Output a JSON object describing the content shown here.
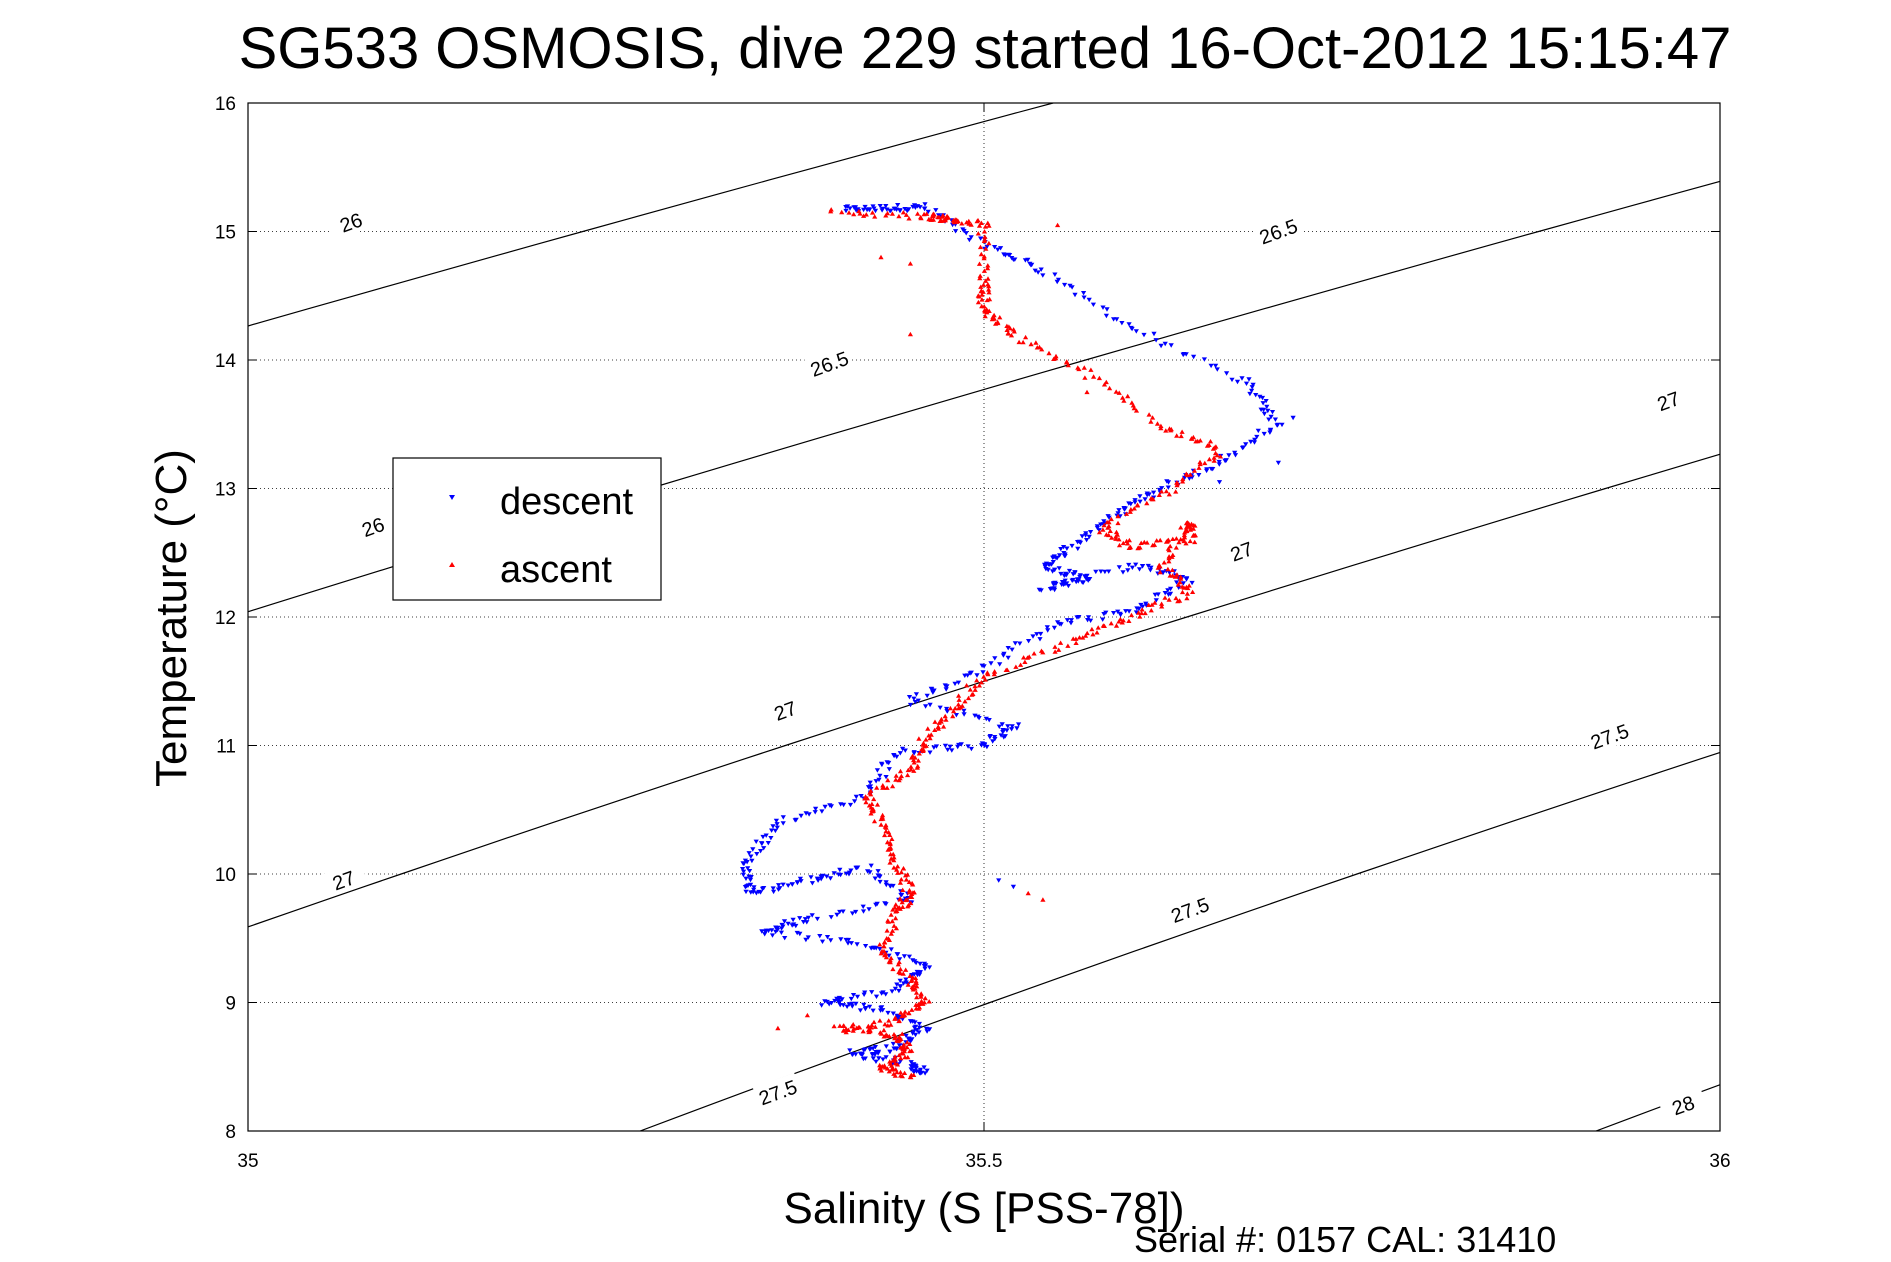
{
  "chart_data": {
    "type": "scatter",
    "title": "SG533 OSMOSIS, dive 229 started 16-Oct-2012 15:15:47",
    "xlabel": "Salinity (S [PSS-78])",
    "ylabel": "Temperature (°C)",
    "xlim": [
      35,
      36
    ],
    "ylim": [
      8,
      16
    ],
    "xticks": [
      35,
      35.5,
      36
    ],
    "yticks": [
      8,
      9,
      10,
      11,
      12,
      13,
      14,
      15,
      16
    ],
    "xtick_labels": [
      "35",
      "35.5",
      "36"
    ],
    "ytick_labels": [
      "8",
      "9",
      "10",
      "11",
      "12",
      "13",
      "14",
      "15",
      "16"
    ],
    "grid": true,
    "legend": {
      "position": "left",
      "entries": [
        "descent",
        "ascent"
      ]
    },
    "colors": {
      "descent": "#0000ff",
      "ascent": "#ff0000",
      "contour": "#000000"
    },
    "density_contours": {
      "levels": [
        26,
        26.5,
        27,
        27.5,
        28
      ],
      "labels": [
        {
          "level": 26,
          "text": "26",
          "at": [
            35.07,
            15.07
          ]
        },
        {
          "level": 26,
          "text": "26",
          "at": [
            35.085,
            12.7
          ]
        },
        {
          "level": 26.5,
          "text": "26.5",
          "at": [
            35.395,
            13.97
          ]
        },
        {
          "level": 26.5,
          "text": "26.5",
          "at": [
            35.7,
            15.0
          ]
        },
        {
          "level": 27,
          "text": "27",
          "at": [
            35.065,
            9.95
          ]
        },
        {
          "level": 27,
          "text": "27",
          "at": [
            35.365,
            11.27
          ]
        },
        {
          "level": 27,
          "text": "27",
          "at": [
            35.675,
            12.51
          ]
        },
        {
          "level": 27,
          "text": "27",
          "at": [
            35.965,
            13.68
          ]
        },
        {
          "level": 27.5,
          "text": "27.5",
          "at": [
            35.36,
            8.3
          ]
        },
        {
          "level": 27.5,
          "text": "27.5",
          "at": [
            35.64,
            9.72
          ]
        },
        {
          "level": 27.5,
          "text": "27.5",
          "at": [
            35.925,
            11.07
          ]
        },
        {
          "level": 28,
          "text": "28",
          "at": [
            35.975,
            8.2
          ]
        }
      ]
    },
    "series": [
      {
        "name": "descent",
        "marker": "triangle-down",
        "anchors": [
          [
            35.405,
            15.17
          ],
          [
            35.43,
            15.18
          ],
          [
            35.46,
            15.19
          ],
          [
            35.5,
            14.9
          ],
          [
            35.54,
            14.7
          ],
          [
            35.6,
            14.25
          ],
          [
            35.68,
            13.8
          ],
          [
            35.7,
            13.5
          ],
          [
            35.66,
            13.2
          ],
          [
            35.62,
            13.0
          ],
          [
            35.59,
            12.8
          ],
          [
            35.56,
            12.55
          ],
          [
            35.54,
            12.4
          ],
          [
            35.57,
            12.3
          ],
          [
            35.54,
            12.22
          ],
          [
            35.6,
            12.4
          ],
          [
            35.64,
            12.3
          ],
          [
            35.6,
            12.05
          ],
          [
            35.55,
            11.95
          ],
          [
            35.5,
            11.6
          ],
          [
            35.45,
            11.35
          ],
          [
            35.52,
            11.15
          ],
          [
            35.5,
            11.0
          ],
          [
            35.44,
            10.95
          ],
          [
            35.42,
            10.6
          ],
          [
            35.36,
            10.4
          ],
          [
            35.34,
            10.1
          ],
          [
            35.34,
            9.85
          ],
          [
            35.38,
            9.95
          ],
          [
            35.42,
            10.05
          ],
          [
            35.45,
            9.8
          ],
          [
            35.38,
            9.65
          ],
          [
            35.35,
            9.55
          ],
          [
            35.42,
            9.45
          ],
          [
            35.46,
            9.3
          ],
          [
            35.44,
            9.1
          ],
          [
            35.39,
            9.0
          ],
          [
            35.43,
            8.95
          ],
          [
            35.46,
            8.8
          ],
          [
            35.44,
            8.65
          ],
          [
            35.41,
            8.6
          ],
          [
            35.45,
            8.52
          ],
          [
            35.46,
            8.45
          ]
        ],
        "extras": [
          [
            35.52,
            9.9
          ],
          [
            35.51,
            9.95
          ],
          [
            35.6,
            14.25
          ],
          [
            35.68,
            13.85
          ],
          [
            35.71,
            13.55
          ],
          [
            35.7,
            13.2
          ],
          [
            35.66,
            13.05
          ]
        ]
      },
      {
        "name": "ascent",
        "marker": "triangle-up",
        "anchors": [
          [
            35.395,
            15.15
          ],
          [
            35.46,
            15.12
          ],
          [
            35.475,
            15.1
          ],
          [
            35.5,
            15.05
          ],
          [
            35.5,
            14.6
          ],
          [
            35.5,
            14.4
          ],
          [
            35.52,
            14.2
          ],
          [
            35.57,
            13.9
          ],
          [
            35.62,
            13.5
          ],
          [
            35.66,
            13.3
          ],
          [
            35.63,
            13.0
          ],
          [
            35.58,
            12.7
          ],
          [
            35.6,
            12.55
          ],
          [
            35.64,
            12.6
          ],
          [
            35.64,
            12.75
          ],
          [
            35.62,
            12.4
          ],
          [
            35.64,
            12.2
          ],
          [
            35.6,
            12.0
          ],
          [
            35.56,
            11.8
          ],
          [
            35.5,
            11.55
          ],
          [
            35.48,
            11.3
          ],
          [
            35.46,
            11.05
          ],
          [
            35.45,
            10.8
          ],
          [
            35.42,
            10.6
          ],
          [
            35.43,
            10.4
          ],
          [
            35.44,
            10.1
          ],
          [
            35.45,
            9.85
          ],
          [
            35.44,
            9.7
          ],
          [
            35.43,
            9.4
          ],
          [
            35.45,
            9.2
          ],
          [
            35.46,
            9.0
          ],
          [
            35.44,
            8.85
          ],
          [
            35.4,
            8.8
          ],
          [
            35.44,
            8.75
          ],
          [
            35.45,
            8.6
          ],
          [
            35.43,
            8.5
          ],
          [
            35.45,
            8.42
          ]
        ],
        "extras": [
          [
            35.55,
            15.05
          ],
          [
            35.45,
            14.2
          ],
          [
            35.53,
            9.85
          ],
          [
            35.54,
            9.8
          ],
          [
            35.43,
            14.8
          ],
          [
            35.45,
            14.75
          ],
          [
            35.57,
            13.75
          ],
          [
            35.38,
            8.9
          ],
          [
            35.36,
            8.8
          ]
        ]
      }
    ]
  },
  "footer": {
    "serial": "Serial #: 0157  CAL: 31410"
  }
}
